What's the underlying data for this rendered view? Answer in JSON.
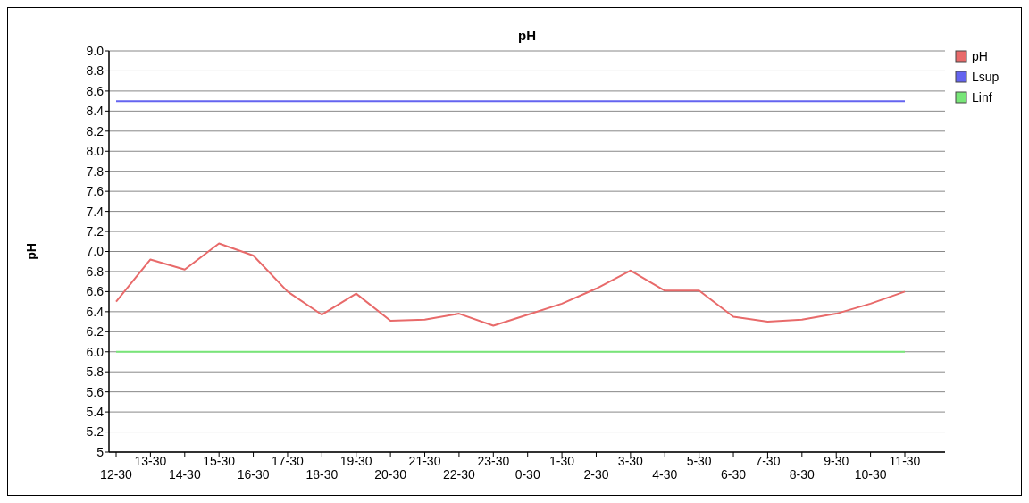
{
  "chart_data": {
    "type": "line",
    "title": "pH",
    "ylabel": "pH",
    "categories": [
      "12-30",
      "13-30",
      "14-30",
      "15-30",
      "16-30",
      "17-30",
      "18-30",
      "19-30",
      "20-30",
      "21-30",
      "22-30",
      "23-30",
      "0-30",
      "1-30",
      "2-30",
      "3-30",
      "4-30",
      "5-30",
      "6-30",
      "7-30",
      "8-30",
      "9-30",
      "10-30",
      "11-30"
    ],
    "series": [
      {
        "name": "pH",
        "color": "#e86a6a",
        "values": [
          6.5,
          6.92,
          6.82,
          7.08,
          6.96,
          6.6,
          6.37,
          6.58,
          6.31,
          6.32,
          6.38,
          6.26,
          6.37,
          6.48,
          6.63,
          6.81,
          6.61,
          6.61,
          6.35,
          6.3,
          6.32,
          6.38,
          6.48,
          6.6
        ]
      },
      {
        "name": "Lsup",
        "color": "#6464f0",
        "values": [
          8.5,
          8.5,
          8.5,
          8.5,
          8.5,
          8.5,
          8.5,
          8.5,
          8.5,
          8.5,
          8.5,
          8.5,
          8.5,
          8.5,
          8.5,
          8.5,
          8.5,
          8.5,
          8.5,
          8.5,
          8.5,
          8.5,
          8.5,
          8.5
        ]
      },
      {
        "name": "Linf",
        "color": "#78e678",
        "values": [
          6,
          6,
          6,
          6,
          6,
          6,
          6,
          6,
          6,
          6,
          6,
          6,
          6,
          6,
          6,
          6,
          6,
          6,
          6,
          6,
          6,
          6,
          6,
          6
        ]
      }
    ],
    "ylim": [
      5,
      9
    ],
    "yticks": [
      5,
      5.2,
      5.4,
      5.6,
      5.8,
      {
        "value": 6,
        "label": "6.0"
      },
      6.2,
      6.4,
      6.6,
      6.8,
      {
        "value": 7,
        "label": "7.0"
      },
      7.2,
      7.4,
      7.6,
      7.8,
      {
        "value": 8,
        "label": "8.0"
      },
      8.2,
      8.4,
      8.6,
      8.8,
      {
        "value": 9,
        "label": "9.0"
      }
    ],
    "grid": "y",
    "legend": "right",
    "marker": "none",
    "line_style": "solid"
  }
}
